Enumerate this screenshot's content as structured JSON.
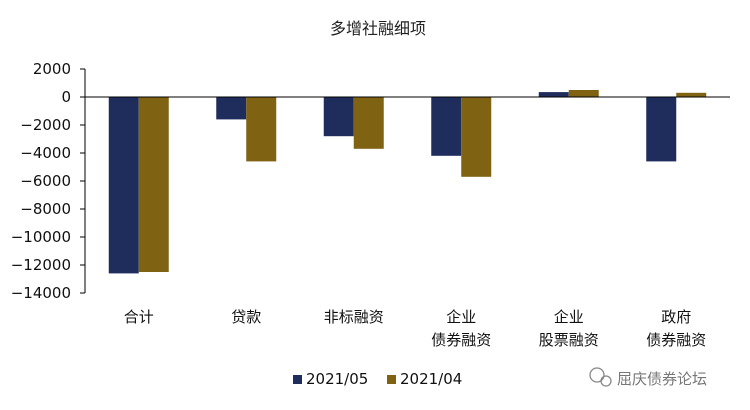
{
  "chart_data": {
    "type": "bar",
    "title": "多增社融细项",
    "categories": [
      [
        "合计"
      ],
      [
        "贷款"
      ],
      [
        "非标融资"
      ],
      [
        "企业",
        "债券融资"
      ],
      [
        "企业",
        "股票融资"
      ],
      [
        "政府",
        "债券融资"
      ]
    ],
    "series": [
      {
        "name": "2021/05",
        "color": "#1f2d5c",
        "values": [
          -12600,
          -1600,
          -2800,
          -4200,
          350,
          -4600
        ]
      },
      {
        "name": "2021/04",
        "color": "#7f6313",
        "values": [
          -12500,
          -4600,
          -3700,
          -5700,
          500,
          300
        ]
      }
    ],
    "ylim": [
      -14000,
      2000
    ],
    "yticks": [
      2000,
      0,
      -2000,
      -4000,
      -6000,
      -8000,
      -10000,
      -12000,
      -14000
    ],
    "ytick_labels": [
      "2000",
      "0",
      "−2000",
      "−4000",
      "−6000",
      "−8000",
      "−10000",
      "−12000",
      "−14000"
    ],
    "grid": false,
    "legend_position": "bottom-center"
  },
  "watermark": {
    "text": "屈庆债券论坛",
    "icon": "wechat-icon"
  }
}
